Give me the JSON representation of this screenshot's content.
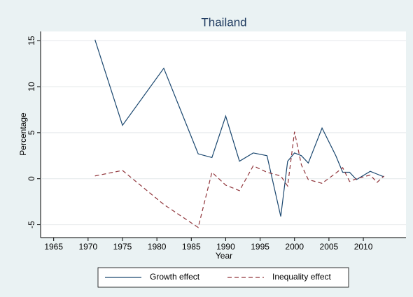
{
  "chart_data": {
    "type": "line",
    "title": "Thailand",
    "x_label": "Year",
    "y_label": "Percentage",
    "x": [
      1971,
      1975,
      1981,
      1986,
      1988,
      1990,
      1992,
      1994,
      1996,
      1998,
      1999,
      2000,
      2001,
      2002,
      2004,
      2006,
      2007,
      2008,
      2009,
      2011,
      2012,
      2013
    ],
    "series": [
      {
        "name": "Growth effect",
        "color": "#1a476f",
        "dash": false,
        "values": [
          15.1,
          5.8,
          12.0,
          2.7,
          2.3,
          6.8,
          1.9,
          2.8,
          2.5,
          -4.1,
          1.9,
          2.8,
          2.5,
          1.7,
          5.5,
          2.5,
          0.7,
          0.7,
          -0.1,
          0.8,
          0.5,
          0.2
        ]
      },
      {
        "name": "Inequality effect",
        "color": "#90353b",
        "dash": true,
        "values": [
          0.3,
          0.9,
          -2.8,
          -5.3,
          0.7,
          -0.7,
          -1.3,
          1.4,
          0.7,
          0.3,
          -0.8,
          5.1,
          1.5,
          -0.1,
          -0.5,
          0.6,
          1.2,
          -0.3,
          0.0,
          0.4,
          -0.4,
          0.3
        ]
      }
    ],
    "xlim": [
      1963.1,
      2016.2
    ],
    "xticks": [
      1965,
      1970,
      1975,
      1980,
      1985,
      1990,
      1995,
      2000,
      2005,
      2010
    ],
    "ylim": [
      -6.4,
      16
    ],
    "yticks": [
      -5,
      0,
      5,
      10,
      15
    ],
    "grid": true
  }
}
